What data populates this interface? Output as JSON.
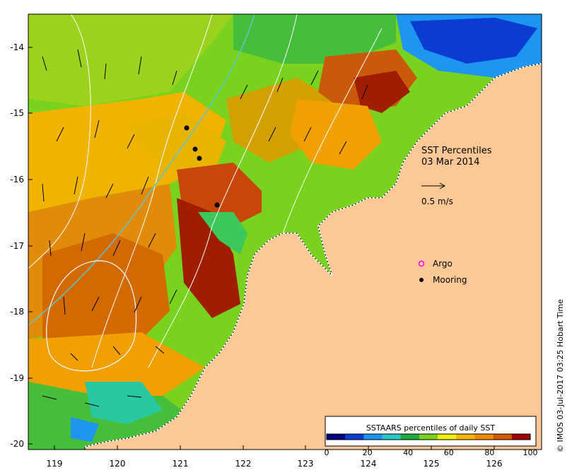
{
  "map": {
    "title_line1": "SST Percentiles",
    "title_line2": "03 Mar 2014",
    "scale_arrow_label": "0.5 m/s",
    "legend": {
      "argo_label": "Argo",
      "mooring_label": "Mooring",
      "argo_color": "#ff00ff",
      "mooring_color": "#000000"
    },
    "colorbar": {
      "title": "SSTAARS percentiles of daily SST",
      "ticks": [
        "0",
        "20",
        "40",
        "60",
        "80",
        "100"
      ],
      "colors": [
        "#00007f",
        "#0a3cd2",
        "#1e96f0",
        "#28c8c8",
        "#1eaa3c",
        "#78d21e",
        "#f0f000",
        "#fab400",
        "#f08c0a",
        "#d25a00",
        "#a00000"
      ]
    },
    "credit": "© IMOS 03-Jul-2017 03:25 Hobart Time",
    "x_ticks": [
      "119",
      "120",
      "121",
      "122",
      "123",
      "124",
      "125",
      "126"
    ],
    "y_ticks": [
      "-14",
      "-15",
      "-16",
      "-17",
      "-18",
      "-19",
      "-20"
    ],
    "land_color": "#fbc896",
    "mooring_positions": [
      {
        "lon": 121.1,
        "lat": -15.2
      },
      {
        "lon": 121.2,
        "lat": -15.55
      },
      {
        "lon": 121.3,
        "lat": -15.7
      },
      {
        "lon": 121.6,
        "lat": -16.4
      }
    ]
  }
}
